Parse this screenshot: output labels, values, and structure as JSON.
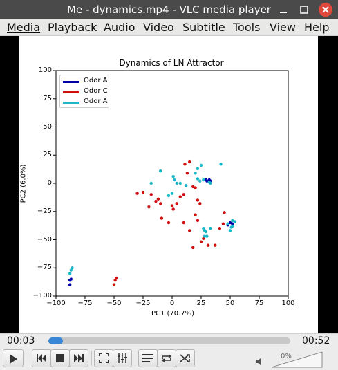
{
  "window": {
    "title": "Me - dynamics.mp4 - VLC media player"
  },
  "menu": [
    {
      "label": "Media"
    },
    {
      "label": "Playback"
    },
    {
      "label": "Audio"
    },
    {
      "label": "Video"
    },
    {
      "label": "Subtitle"
    },
    {
      "label": "Tools"
    },
    {
      "label": "View"
    },
    {
      "label": "Help"
    }
  ],
  "colors": {
    "odor_a_dark": "#0000aa",
    "odor_c": "#d01010",
    "odor_a_cyan": "#1ab8c8",
    "seek_fill": "#3a86d6"
  },
  "icons": {
    "minimize": "minimize-icon",
    "maximize": "maximize-icon",
    "close": "close-icon",
    "play": "play-icon",
    "previous": "skip-previous-icon",
    "stop": "stop-icon",
    "next": "skip-next-icon",
    "fullscreen": "fullscreen-icon",
    "extended": "equalizer-icon",
    "playlist": "playlist-icon",
    "loop": "loop-icon",
    "shuffle": "shuffle-icon",
    "volume": "volume-icon"
  },
  "player": {
    "elapsed": "00:03",
    "total": "00:52",
    "progress": 0.06,
    "volume_label": "0%"
  },
  "chart_data": {
    "type": "scatter",
    "title": "Dynamics of LN Attractor",
    "xlabel": "PC1 (70.7%)",
    "ylabel": "PC2 (6.0%)",
    "xlim": [
      -100,
      100
    ],
    "ylim": [
      -100,
      100
    ],
    "xticks": [
      "−100",
      "−75",
      "−50",
      "−25",
      "0",
      "25",
      "50",
      "75",
      "100"
    ],
    "yticks": [
      "100",
      "75",
      "50",
      "25",
      "0",
      "−25",
      "−50",
      "−75",
      "−100"
    ],
    "grid": false,
    "legend_position": "top-left",
    "legend": [
      {
        "label": "Odor A",
        "color": "#0000aa"
      },
      {
        "label": "Odor C",
        "color": "#d01010"
      },
      {
        "label": "Odor A",
        "color": "#1ab8c8"
      }
    ],
    "series": [
      {
        "name": "Odor A",
        "color": "#0000aa",
        "points": [
          [
            -88,
            -90
          ],
          [
            -88,
            -86
          ],
          [
            -87,
            -85
          ],
          [
            30,
            2
          ],
          [
            32,
            3
          ],
          [
            33,
            2
          ],
          [
            29,
            3
          ],
          [
            50,
            -35
          ],
          [
            52,
            -36
          ],
          [
            48,
            -37
          ]
        ]
      },
      {
        "name": "Odor C",
        "color": "#d01010",
        "points": [
          [
            -50,
            -90
          ],
          [
            -49,
            -86
          ],
          [
            -48,
            -84
          ],
          [
            -30,
            -9
          ],
          [
            -25,
            -8
          ],
          [
            -18,
            -10
          ],
          [
            -14,
            -16
          ],
          [
            -12,
            -14
          ],
          [
            -10,
            -18
          ],
          [
            -20,
            -21
          ],
          [
            -9,
            -31
          ],
          [
            -3,
            -35
          ],
          [
            0,
            -20
          ],
          [
            1,
            -23
          ],
          [
            4,
            -18
          ],
          [
            7,
            -12
          ],
          [
            10,
            -10
          ],
          [
            13,
            9
          ],
          [
            15,
            19
          ],
          [
            11,
            17
          ],
          [
            18,
            -3
          ],
          [
            20,
            -4
          ],
          [
            22,
            -15
          ],
          [
            24,
            -18
          ],
          [
            20,
            -28
          ],
          [
            22,
            -33
          ],
          [
            10,
            -35
          ],
          [
            15,
            -42
          ],
          [
            18,
            -57
          ],
          [
            25,
            -52
          ],
          [
            27,
            -49
          ],
          [
            31,
            -55
          ],
          [
            37,
            -55
          ],
          [
            41,
            -40
          ],
          [
            44,
            -36
          ],
          [
            45,
            -26
          ]
        ]
      },
      {
        "name": "Odor A",
        "color": "#1ab8c8",
        "points": [
          [
            -88,
            -80
          ],
          [
            -87,
            -77
          ],
          [
            -86,
            -75
          ],
          [
            -18,
            0
          ],
          [
            -10,
            11
          ],
          [
            -3,
            -11
          ],
          [
            0,
            -9
          ],
          [
            1,
            6
          ],
          [
            2,
            3
          ],
          [
            4,
            0
          ],
          [
            7,
            0
          ],
          [
            12,
            -2
          ],
          [
            20,
            9
          ],
          [
            22,
            4
          ],
          [
            22,
            13
          ],
          [
            24,
            2
          ],
          [
            27,
            3
          ],
          [
            25,
            16
          ],
          [
            33,
            0
          ],
          [
            32,
            1
          ],
          [
            42,
            17
          ],
          [
            27,
            -40
          ],
          [
            28,
            -42
          ],
          [
            29,
            -43
          ],
          [
            33,
            -40
          ],
          [
            48,
            -36
          ],
          [
            50,
            -42
          ],
          [
            52,
            -33
          ],
          [
            51,
            -39
          ],
          [
            54,
            -34
          ],
          [
            52,
            -38
          ],
          [
            28,
            -47
          ],
          [
            30,
            -47
          ]
        ]
      }
    ]
  }
}
